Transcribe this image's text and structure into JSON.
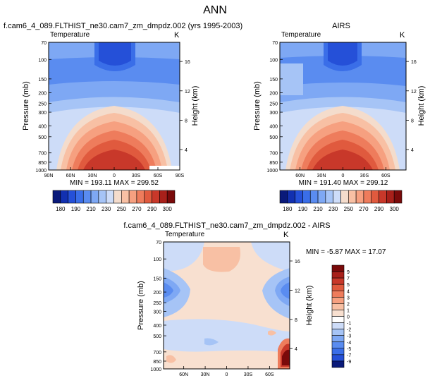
{
  "page_title": "ANN",
  "chart_data": [
    {
      "type": "heatmap",
      "title": "f.cam6_4_089.FLTHIST_ne30.cam7_zm_dmpdz.002 (yrs 1995-2003)",
      "variable": "Temperature",
      "units": "K",
      "ylabel": "Pressure (mb)",
      "ylabel_right": "Height (km)",
      "x_ticks": [
        "90N",
        "60N",
        "30N",
        "0",
        "30S",
        "60S",
        "90S"
      ],
      "y_ticks": [
        "70",
        "100",
        "150",
        "200",
        "250",
        "300",
        "400",
        "500",
        "700",
        "850",
        "1000"
      ],
      "height_ticks": [
        "16",
        "12",
        "8",
        "4"
      ],
      "min": 193.11,
      "max": 299.52,
      "stats_label": "MIN = 193.11   MAX = 299.52"
    },
    {
      "type": "heatmap",
      "title": "AIRS",
      "variable": "Temperature",
      "units": "K",
      "ylabel": "Pressure (mb)",
      "ylabel_right": "Height (km)",
      "x_ticks": [
        "60N",
        "30N",
        "0",
        "30S",
        "60S"
      ],
      "y_ticks": [
        "70",
        "100",
        "150",
        "200",
        "250",
        "300",
        "400",
        "500",
        "700",
        "850",
        "1000"
      ],
      "height_ticks": [
        "16",
        "12",
        "8",
        "4"
      ],
      "min": 191.4,
      "max": 299.12,
      "stats_label": "MIN = 191.40   MAX = 299.12"
    },
    {
      "type": "heatmap",
      "title": "f.cam6_4_089.FLTHIST_ne30.cam7_zm_dmpdz.002 - AIRS",
      "variable": "Temperature",
      "units": "K",
      "ylabel": "Pressure (mb)",
      "ylabel_right": "Height (km)",
      "x_ticks": [
        "60N",
        "30N",
        "0",
        "30S",
        "60S"
      ],
      "y_ticks": [
        "70",
        "100",
        "150",
        "200",
        "250",
        "300",
        "400",
        "500",
        "700",
        "850",
        "1000"
      ],
      "height_ticks": [
        "16",
        "12",
        "8",
        "4"
      ],
      "min": -5.87,
      "max": 17.07,
      "stats_label": "MIN = -5.87   MAX = 17.07"
    }
  ],
  "colorbar_abs": {
    "labels": [
      "180",
      "190",
      "210",
      "230",
      "250",
      "270",
      "290",
      "300"
    ],
    "colors": [
      "#0a1a7a",
      "#1230b0",
      "#2550d8",
      "#3a6ee8",
      "#5a8cf0",
      "#7ea8f4",
      "#a6c4f6",
      "#cddcf8",
      "#f4dccc",
      "#f8c0a4",
      "#f6a080",
      "#ee7c5c",
      "#e05a3e",
      "#c8382a",
      "#a8201a",
      "#7a0a0a"
    ]
  },
  "colorbar_diff": {
    "labels": [
      "9",
      "7",
      "5",
      "4",
      "3",
      "2",
      "1",
      "0",
      "-1",
      "-2",
      "-3",
      "-4",
      "-5",
      "-7",
      "-9"
    ],
    "colors": [
      "#7a0a0a",
      "#a8201a",
      "#c8382a",
      "#e05a3e",
      "#ee7c5c",
      "#f6a080",
      "#f8c0a4",
      "#f8e0d0",
      "#ffffff",
      "#cddcf8",
      "#a6c4f6",
      "#7ea8f4",
      "#5a8cf0",
      "#3a6ee8",
      "#2550d8",
      "#0a1a7a"
    ]
  }
}
